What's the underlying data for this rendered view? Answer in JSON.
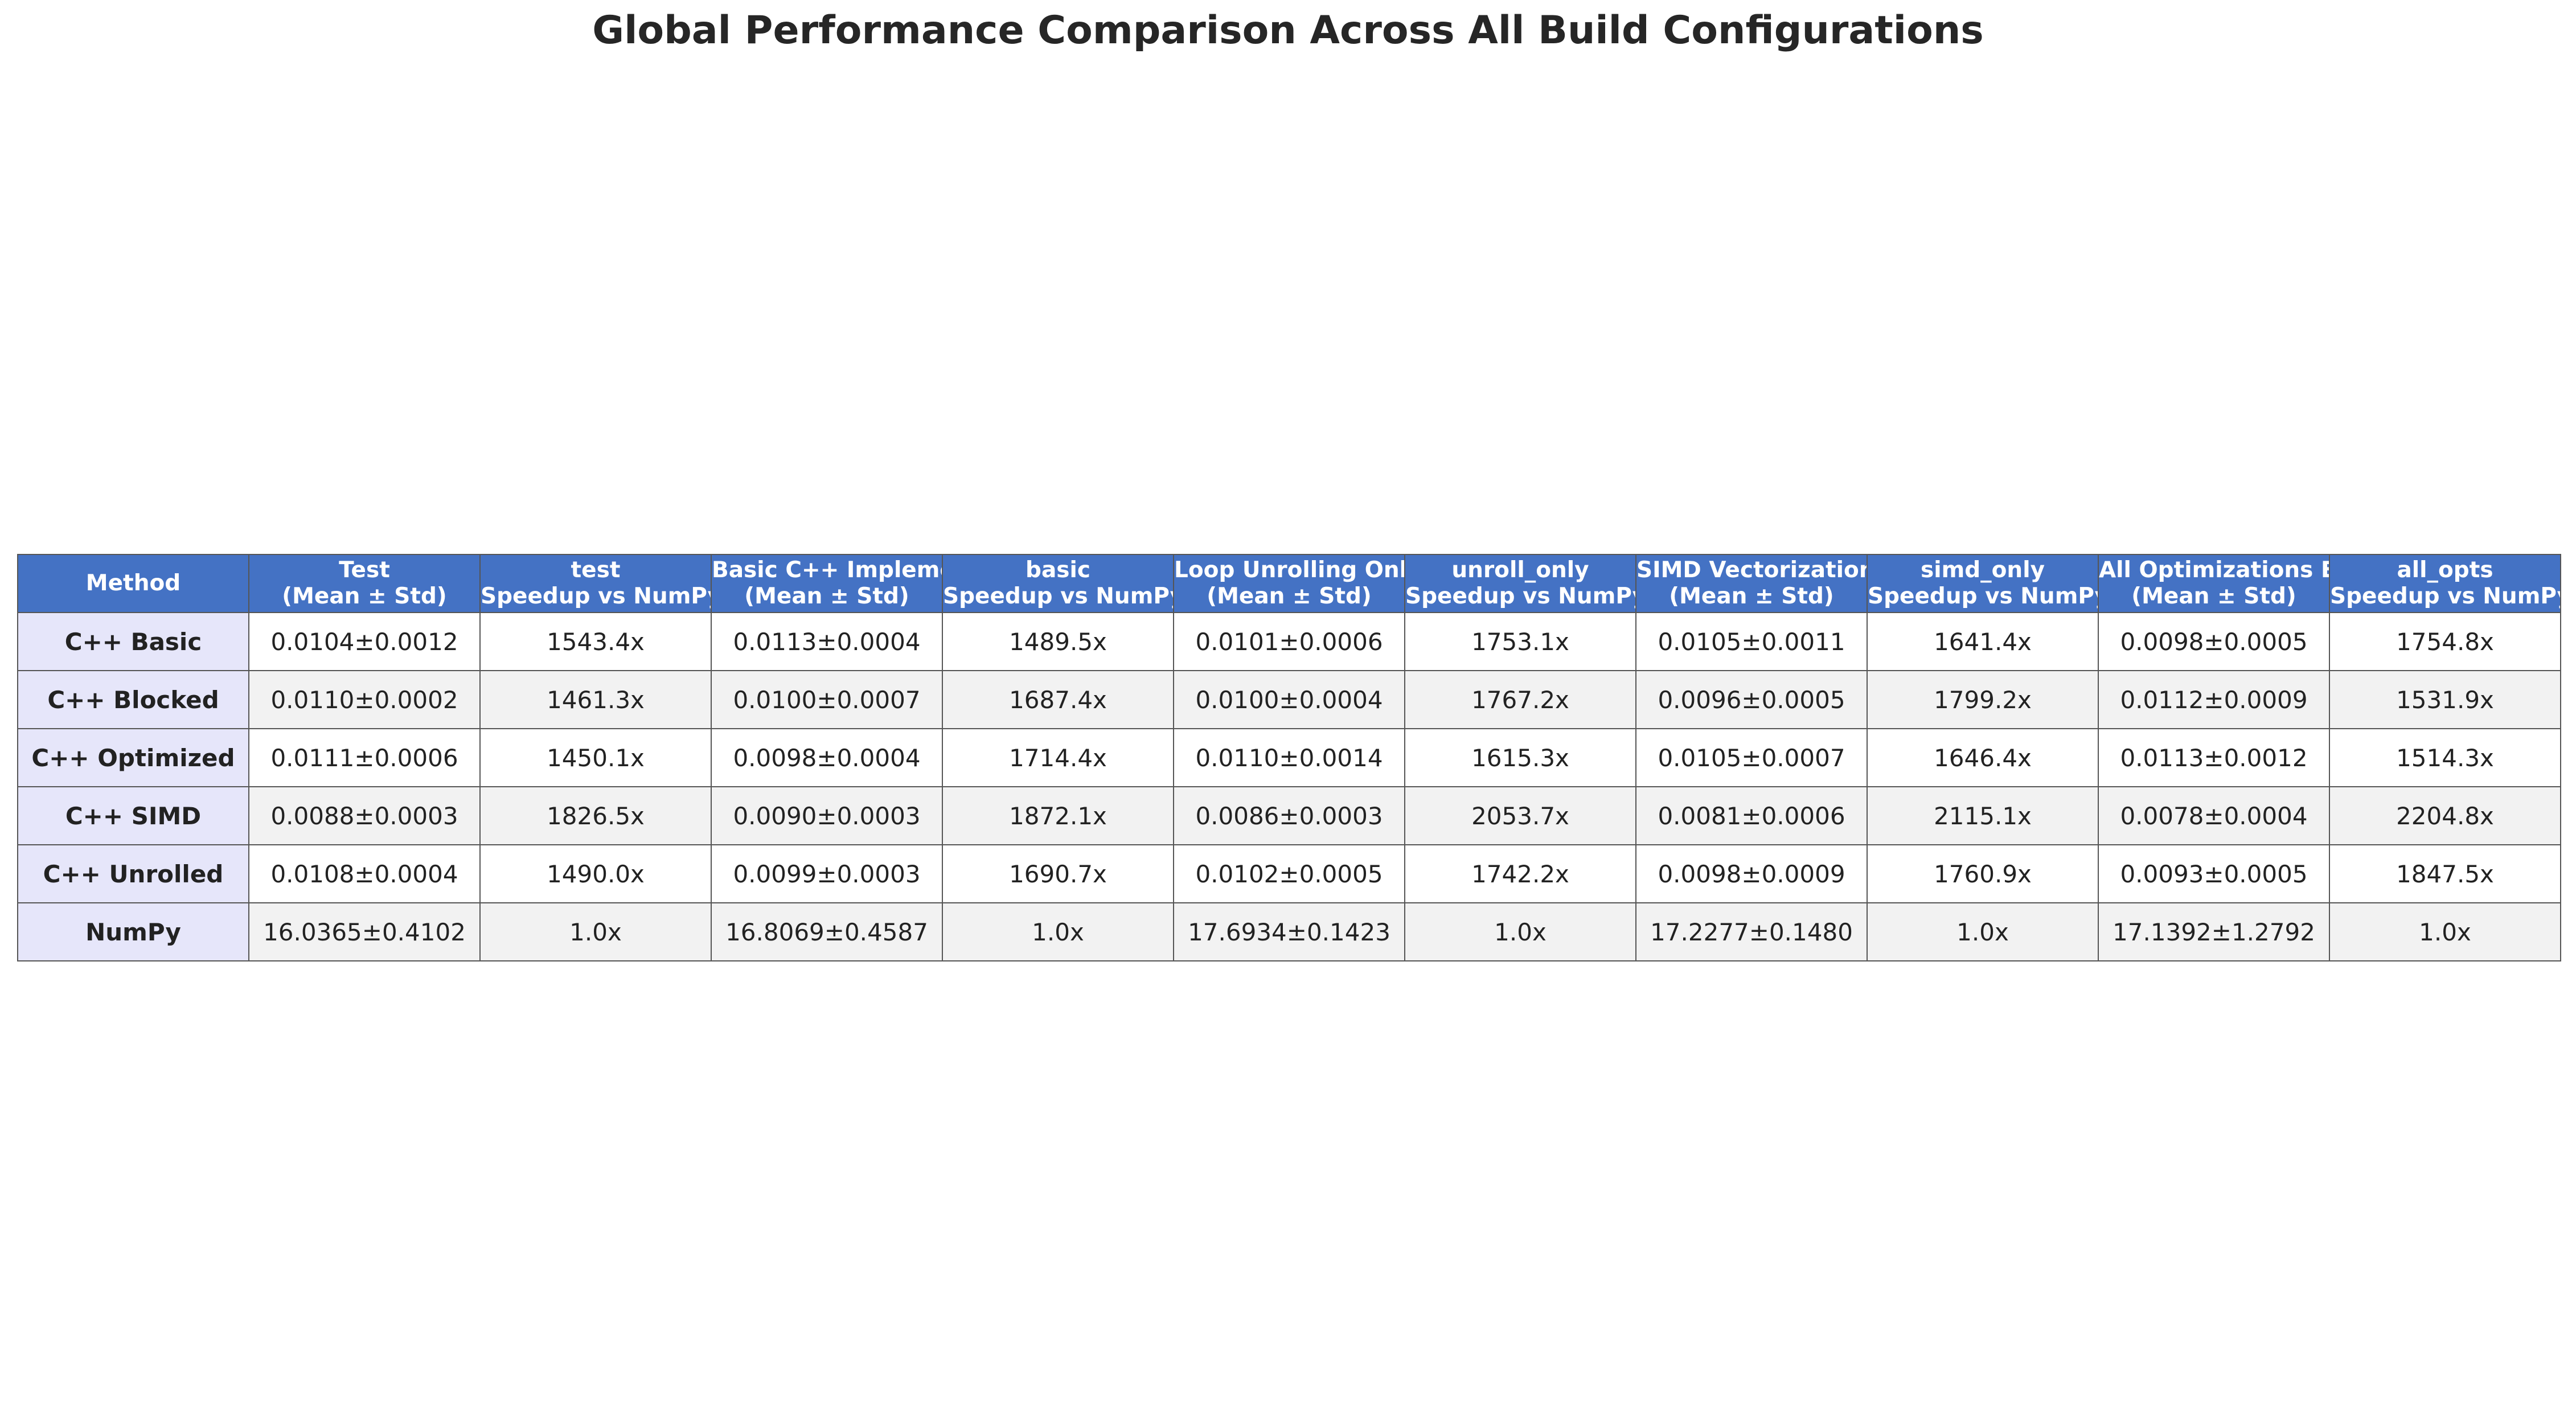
{
  "colors": {
    "header_bg": "#4472c4",
    "header_text": "#ffffff",
    "method_col_bg": "#e6e6fa",
    "row_alt_bg": "#f2f2f2",
    "border": "#555555"
  },
  "chart_data": {
    "type": "table",
    "title": "Global Performance Comparison Across All Build Configurations",
    "columns": [
      [
        "Method"
      ],
      [
        "Test",
        "(Mean ± Std)"
      ],
      [
        "test",
        "Speedup vs NumPy"
      ],
      [
        "Basic C++ Implementation",
        "(Mean ± Std)"
      ],
      [
        "basic",
        "Speedup vs NumPy"
      ],
      [
        "Loop Unrolling Only",
        "(Mean ± Std)"
      ],
      [
        "unroll_only",
        "Speedup vs NumPy"
      ],
      [
        "SIMD Vectorization Only",
        "(Mean ± Std)"
      ],
      [
        "simd_only",
        "Speedup vs NumPy"
      ],
      [
        "All Optimizations Enabled",
        "(Mean ± Std)"
      ],
      [
        "all_opts",
        "Speedup vs NumPy"
      ]
    ],
    "rows": [
      [
        "C++ Basic",
        "0.0104±0.0012",
        "1543.4x",
        "0.0113±0.0004",
        "1489.5x",
        "0.0101±0.0006",
        "1753.1x",
        "0.0105±0.0011",
        "1641.4x",
        "0.0098±0.0005",
        "1754.8x"
      ],
      [
        "C++ Blocked",
        "0.0110±0.0002",
        "1461.3x",
        "0.0100±0.0007",
        "1687.4x",
        "0.0100±0.0004",
        "1767.2x",
        "0.0096±0.0005",
        "1799.2x",
        "0.0112±0.0009",
        "1531.9x"
      ],
      [
        "C++ Optimized",
        "0.0111±0.0006",
        "1450.1x",
        "0.0098±0.0004",
        "1714.4x",
        "0.0110±0.0014",
        "1615.3x",
        "0.0105±0.0007",
        "1646.4x",
        "0.0113±0.0012",
        "1514.3x"
      ],
      [
        "C++ SIMD",
        "0.0088±0.0003",
        "1826.5x",
        "0.0090±0.0003",
        "1872.1x",
        "0.0086±0.0003",
        "2053.7x",
        "0.0081±0.0006",
        "2115.1x",
        "0.0078±0.0004",
        "2204.8x"
      ],
      [
        "C++ Unrolled",
        "0.0108±0.0004",
        "1490.0x",
        "0.0099±0.0003",
        "1690.7x",
        "0.0102±0.0005",
        "1742.2x",
        "0.0098±0.0009",
        "1760.9x",
        "0.0093±0.0005",
        "1847.5x"
      ],
      [
        "NumPy",
        "16.0365±0.4102",
        "1.0x",
        "16.8069±0.4587",
        "1.0x",
        "17.6934±0.1423",
        "1.0x",
        "17.2277±0.1480",
        "1.0x",
        "17.1392±1.2792",
        "1.0x"
      ]
    ]
  }
}
